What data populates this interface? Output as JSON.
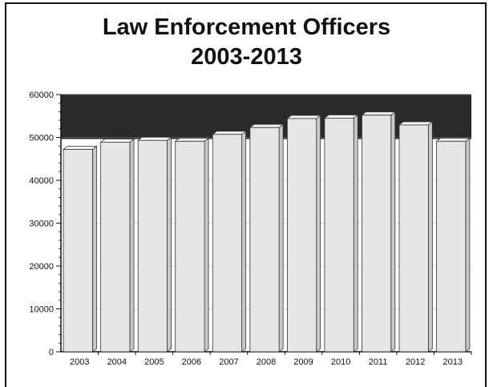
{
  "page": {
    "title_line1": "Law Enforcement Officers",
    "title_line2": "2003-2013"
  },
  "chart_data": {
    "type": "bar",
    "title": "Law Enforcement Officers 2003-2013",
    "xlabel": "",
    "ylabel": "",
    "categories": [
      "2003",
      "2004",
      "2005",
      "2006",
      "2007",
      "2008",
      "2009",
      "2010",
      "2011",
      "2012",
      "2013"
    ],
    "values": [
      47200,
      48900,
      49300,
      49100,
      50700,
      52300,
      54400,
      54500,
      55200,
      52900,
      49100
    ],
    "ylim": [
      0,
      60000
    ],
    "yticks": [
      0,
      10000,
      20000,
      30000,
      40000,
      50000,
      60000
    ],
    "grid": true,
    "legend": "none",
    "colors": {
      "bar_front": "#e6e6e6",
      "bar_side": "#c9c9c9",
      "bar_top": "#f4f4f4",
      "plot_background": "#2a2a2a",
      "bar_stroke": "#333333"
    }
  }
}
